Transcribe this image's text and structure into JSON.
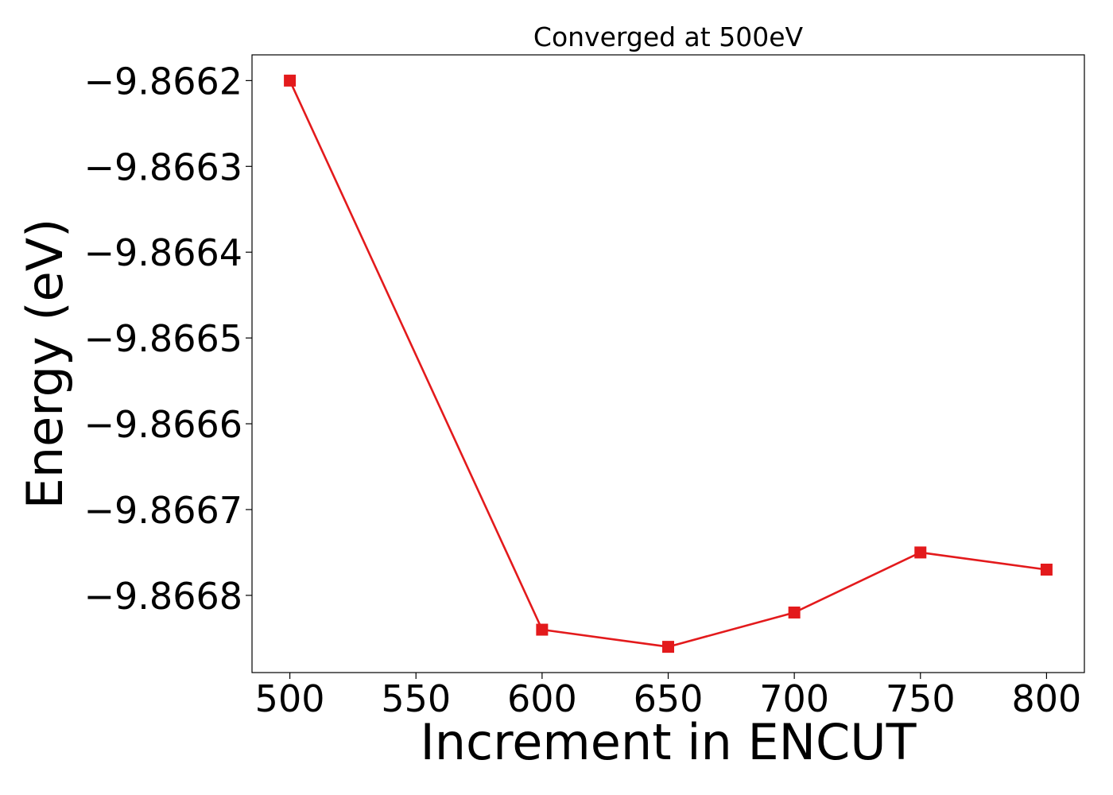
{
  "chart_data": {
    "type": "line",
    "title": "Converged at 500eV",
    "xlabel": "Increment in ENCUT",
    "ylabel": "Energy (eV)",
    "x": [
      500,
      600,
      650,
      700,
      750,
      800
    ],
    "series": [
      {
        "values": [
          -9.8662,
          -9.86684,
          -9.86686,
          -9.86682,
          -9.86675,
          -9.86677
        ],
        "color": "#e31a1c",
        "marker": "square"
      }
    ],
    "xlim": [
      485,
      815
    ],
    "ylim": [
      -9.86689,
      -9.86617
    ],
    "xticks": [
      500,
      550,
      600,
      650,
      700,
      750,
      800
    ],
    "xtick_labels": [
      "500",
      "550",
      "600",
      "650",
      "700",
      "750",
      "800"
    ],
    "yticks": [
      -9.8662,
      -9.8663,
      -9.8664,
      -9.8665,
      -9.8666,
      -9.8667,
      -9.8668
    ],
    "ytick_labels": [
      "−9.8662",
      "−9.8663",
      "−9.8664",
      "−9.8665",
      "−9.8666",
      "−9.8667",
      "−9.8668"
    ],
    "grid": false,
    "legend": "none"
  }
}
